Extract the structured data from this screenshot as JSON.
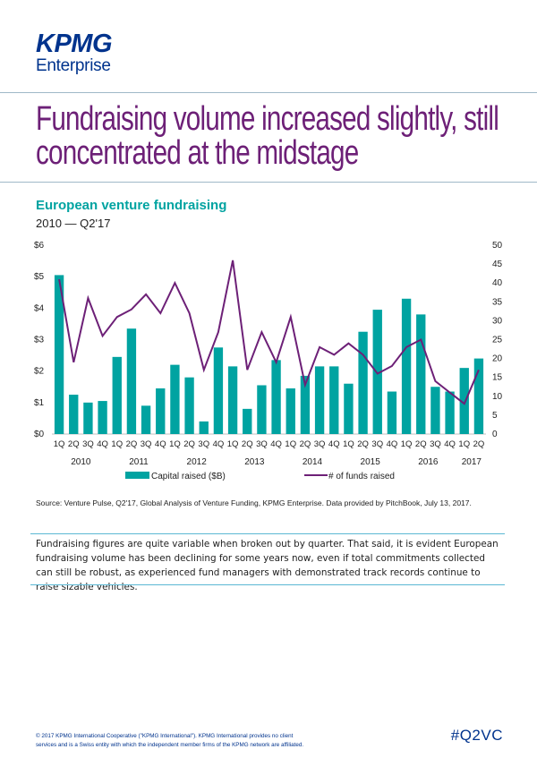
{
  "brand": {
    "logo_text": "KPMG",
    "logo_subtext": "Enterprise",
    "color_primary": "#00338d",
    "color_accent": "#00a3a1",
    "color_purple": "#6d2077"
  },
  "headline": {
    "line1": "Fundraising volume increased slightly, still",
    "line2": "concentrated at the midstage"
  },
  "chart_header": {
    "title": "European venture fundraising",
    "subtitle": "2010 — Q2'17"
  },
  "chart_data": {
    "type": "bar+line",
    "categories": [
      "1Q",
      "2Q",
      "3Q",
      "4Q",
      "1Q",
      "2Q",
      "3Q",
      "4Q",
      "1Q",
      "2Q",
      "3Q",
      "4Q",
      "1Q",
      "2Q",
      "3Q",
      "4Q",
      "1Q",
      "2Q",
      "3Q",
      "4Q",
      "1Q",
      "2Q",
      "3Q",
      "4Q",
      "1Q",
      "2Q",
      "3Q",
      "4Q",
      "1Q",
      "2Q"
    ],
    "years": [
      {
        "label": "2010",
        "center_index": 1.5
      },
      {
        "label": "2011",
        "center_index": 5.5
      },
      {
        "label": "2012",
        "center_index": 9.5
      },
      {
        "label": "2013",
        "center_index": 13.5
      },
      {
        "label": "2014",
        "center_index": 17.5
      },
      {
        "label": "2015",
        "center_index": 21.5
      },
      {
        "label": "2016",
        "center_index": 25.5
      },
      {
        "label": "2017",
        "center_index": 28.5
      }
    ],
    "series": [
      {
        "name": "Capital raised ($B)",
        "type": "bar",
        "axis": "left",
        "color": "#00a3a1",
        "values": [
          5.05,
          1.25,
          1.0,
          1.05,
          2.45,
          3.35,
          0.9,
          1.45,
          2.2,
          1.8,
          0.4,
          2.75,
          2.15,
          0.8,
          1.55,
          2.35,
          1.45,
          1.85,
          2.15,
          2.15,
          1.6,
          3.25,
          3.95,
          1.35,
          4.3,
          3.8,
          1.5,
          1.35,
          2.1,
          2.4
        ]
      },
      {
        "name": "# of funds raised",
        "type": "line",
        "axis": "right",
        "color": "#6d2077",
        "values": [
          41,
          19,
          36,
          26,
          31,
          33,
          37,
          32,
          40,
          32,
          17,
          27,
          46,
          17,
          27,
          19,
          31,
          13,
          23,
          21,
          24,
          21,
          16,
          18,
          23,
          25,
          14,
          11,
          8,
          17
        ]
      }
    ],
    "left_axis": {
      "min": 0,
      "max": 6,
      "ticks": [
        "$0",
        "$1",
        "$2",
        "$3",
        "$4",
        "$5",
        "$6"
      ]
    },
    "right_axis": {
      "min": 0,
      "max": 50,
      "ticks": [
        "0",
        "5",
        "10",
        "15",
        "20",
        "25",
        "30",
        "35",
        "40",
        "45",
        "50"
      ]
    },
    "legend": {
      "position": "bottom",
      "bar_label": "Capital raised ($B)",
      "line_label": "# of funds raised"
    }
  },
  "source": "Source: Venture Pulse, Q2'17, Global Analysis of Venture Funding, KPMG Enterprise. Data provided by PitchBook, July 13, 2017.",
  "paragraph": "Fundraising figures are quite variable when broken out by quarter. That said, it is evident European fundraising volume has been declining for some years now, even if total commitments collected can still be robust, as experienced fund managers with demonstrated track records continue to raise sizable vehicles.",
  "footer": {
    "line1": "© 2017 KPMG International Cooperative (\"KPMG International\"). KPMG International provides no client",
    "line2": "services and is a Swiss entity with which the independent member firms of the KPMG network are affiliated.",
    "hashtag": "#Q2VC"
  }
}
